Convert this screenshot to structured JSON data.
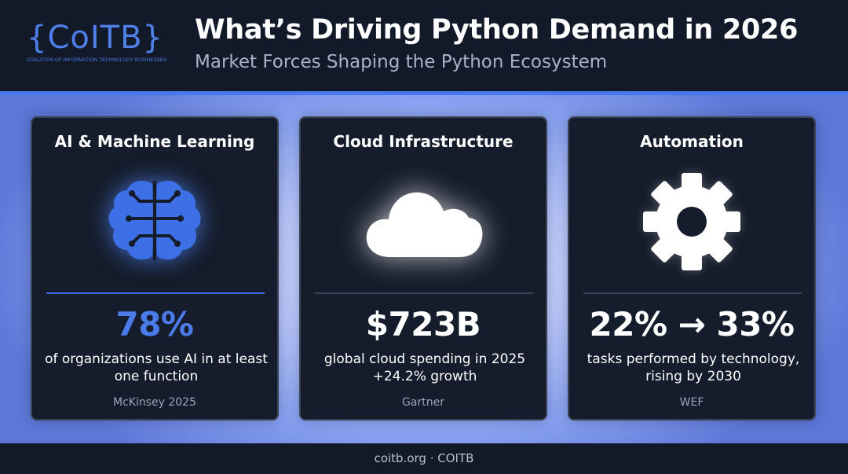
{
  "header": {
    "logo_mark": "{CoITB}",
    "logo_subtitle": "COALITION OF INFORMATION TECHNOLOGY BUSINESSES",
    "title": "What’s Driving Python Demand in 2026",
    "subtitle": "Market Forces Shaping the Python Ecosystem"
  },
  "colors": {
    "accent": "#4a7be8",
    "card_background": "#151c2b",
    "header_background": "#121a2a"
  },
  "cards": [
    {
      "title": "AI & Machine Learning",
      "icon": "brain-icon",
      "stat": "78%",
      "description": "of organizations use AI in at least one function",
      "source": "McKinsey 2025"
    },
    {
      "title": "Cloud Infrastructure",
      "icon": "cloud-icon",
      "stat": "$723B",
      "description": "global cloud spending in 2025 +24.2% growth",
      "source": "Gartner"
    },
    {
      "title": "Automation",
      "icon": "gear-icon",
      "stat": "22% → 33%",
      "description": "tasks performed by technology, rising by 2030",
      "source": "WEF"
    }
  ],
  "footer": {
    "text": "coitb.org · COITB"
  }
}
